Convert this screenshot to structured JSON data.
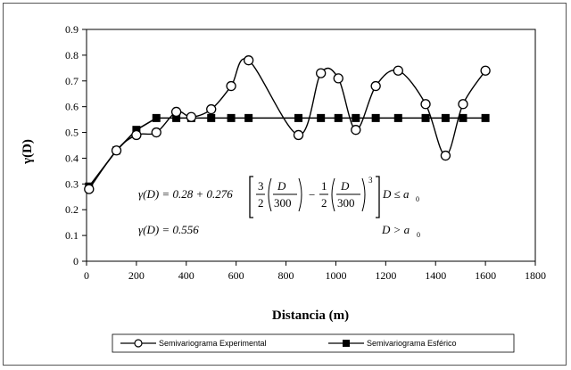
{
  "chart_data": {
    "type": "line",
    "xlabel": "Distancia (m)",
    "ylabel": "γ(D)",
    "xlim": [
      0,
      1800
    ],
    "ylim": [
      0,
      0.9
    ],
    "x_ticks": [
      0,
      200,
      400,
      600,
      800,
      1000,
      1200,
      1400,
      1600,
      1800
    ],
    "y_ticks": [
      0,
      0.1,
      0.2,
      0.3,
      0.4,
      0.5,
      0.6,
      0.7,
      0.8,
      0.9
    ],
    "grid": false,
    "legend_position": "bottom",
    "series": [
      {
        "name": "Semivariograma Experimental",
        "marker": "open-circle",
        "line": "smooth",
        "x": [
          10,
          120,
          200,
          280,
          360,
          420,
          500,
          580,
          650,
          850,
          940,
          1010,
          1080,
          1160,
          1250,
          1360,
          1440,
          1510,
          1600
        ],
        "y": [
          0.28,
          0.43,
          0.49,
          0.5,
          0.58,
          0.56,
          0.59,
          0.68,
          0.78,
          0.49,
          0.73,
          0.71,
          0.51,
          0.68,
          0.74,
          0.61,
          0.41,
          0.61,
          0.74
        ]
      },
      {
        "name": "Semivariograma Esférico",
        "marker": "filled-square",
        "line": "straight",
        "x": [
          10,
          120,
          200,
          280,
          360,
          420,
          500,
          580,
          650,
          850,
          940,
          1010,
          1080,
          1160,
          1250,
          1360,
          1440,
          1510,
          1600
        ],
        "y": [
          0.29,
          0.43,
          0.51,
          0.556,
          0.556,
          0.556,
          0.556,
          0.556,
          0.556,
          0.556,
          0.556,
          0.556,
          0.556,
          0.556,
          0.556,
          0.556,
          0.556,
          0.556,
          0.556
        ]
      }
    ],
    "annotations": {
      "eq1_lhs": "γ(D) = 0.28 + 0.276",
      "eq1_frac1_num": "3",
      "eq1_frac1_den": "2",
      "eq1_D1": "D",
      "eq1_300a": "300",
      "eq1_minus": "−",
      "eq1_frac2_num": "1",
      "eq1_frac2_den": "2",
      "eq1_D2": "D",
      "eq1_300b": "300",
      "eq1_exp": "3",
      "eq1_cond": "D ≤ a",
      "eq1_sub": "0",
      "eq2_lhs": "γ(D) = 0.556",
      "eq2_cond": "D > a",
      "eq2_sub": "0"
    }
  }
}
